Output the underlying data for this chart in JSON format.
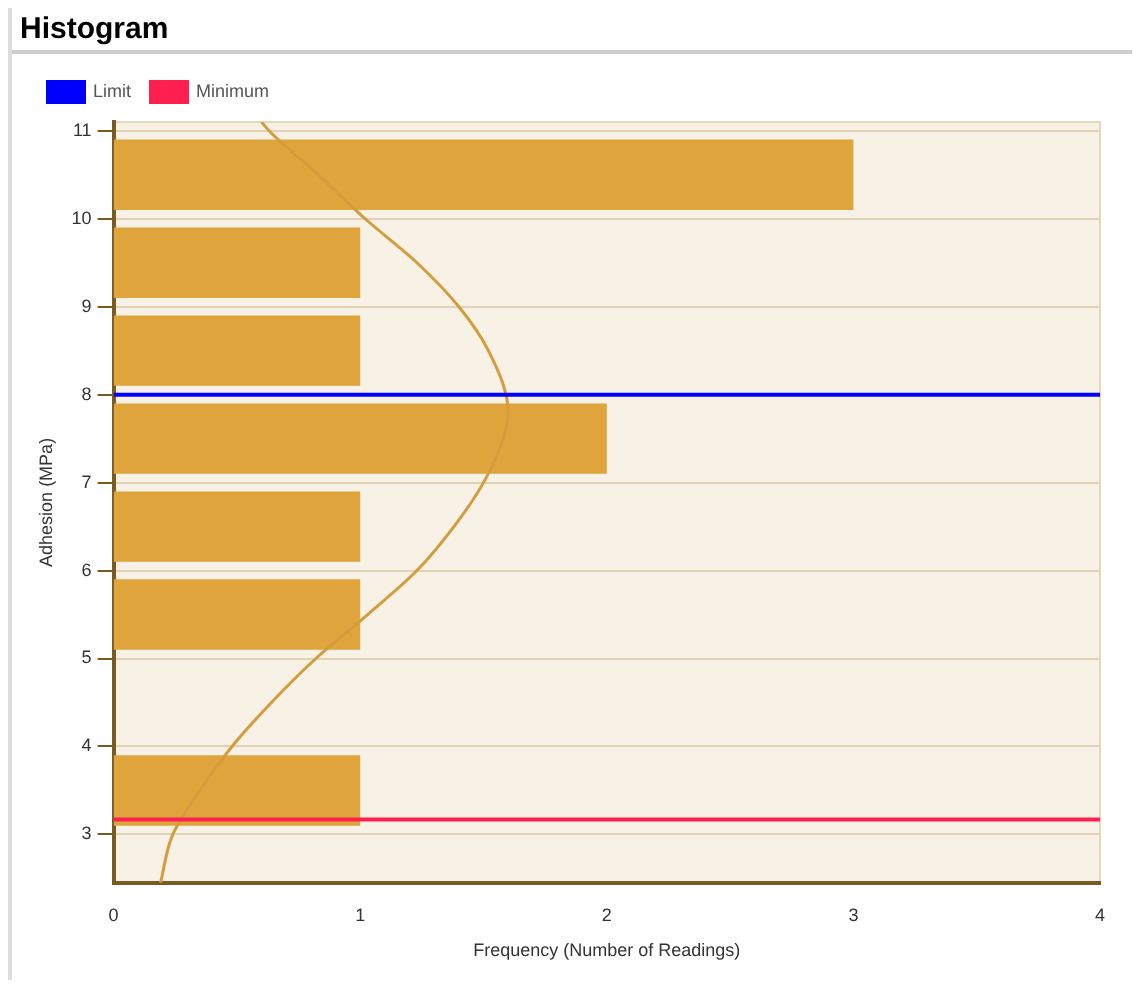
{
  "chart_data": {
    "type": "histogram",
    "title": "Histogram",
    "orientation": "horizontal",
    "xlabel": "Frequency (Number of Readings)",
    "ylabel": "Adhesion (MPa)",
    "bins": [
      3,
      4,
      5,
      6,
      7,
      8,
      9,
      10,
      11
    ],
    "values": [
      1,
      0,
      1,
      1,
      2,
      1,
      1,
      3
    ],
    "color": "#dfa53c",
    "series": [
      {
        "type": "line",
        "color": "#d49c3c",
        "x": [
          2.45,
          3,
          3.5,
          4,
          4.5,
          5,
          5.5,
          6,
          6.5,
          7,
          7.5,
          7.8,
          8.5,
          9,
          9.5,
          10,
          10.5,
          11,
          11.1
        ],
        "values": [
          0.19,
          0.24,
          0.35,
          0.48,
          0.64,
          0.82,
          1.03,
          1.23,
          1.38,
          1.5,
          1.58,
          1.6,
          1.52,
          1.4,
          1.23,
          1.02,
          0.83,
          0.63,
          0.6
        ]
      }
    ],
    "ref_lines": [
      {
        "axis": "y",
        "value": 8,
        "label": "Limit",
        "color": "#0000ff"
      },
      {
        "axis": "y",
        "value": 3.17,
        "label": "Minimum",
        "color": "#ff2050"
      }
    ],
    "xlim": [
      0,
      4
    ],
    "xticks": [
      0,
      1,
      2,
      3,
      4
    ],
    "ylim": [
      2.45,
      11.1
    ],
    "yticks": [
      3,
      4,
      5,
      6,
      7,
      8,
      9,
      10,
      11
    ],
    "grid": "y",
    "legend": "top left"
  }
}
